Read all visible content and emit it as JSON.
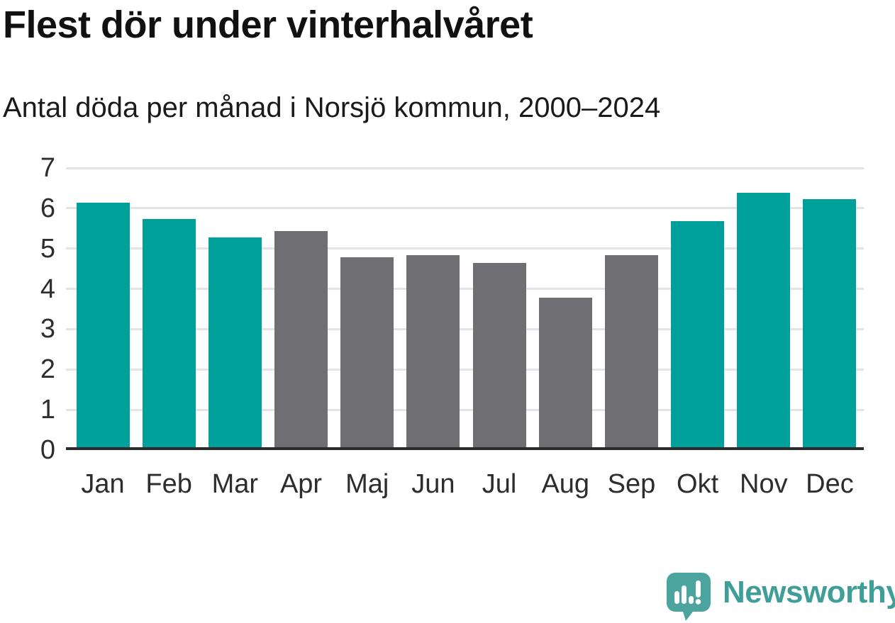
{
  "page": {
    "title": "Flest dör under vinterhalvåret",
    "subtitle": "Antal döda per månad i Norsjö kommun, 2000–2024"
  },
  "chart_data": {
    "type": "bar",
    "title": "Flest dör under vinterhalvåret",
    "subtitle": "Antal döda per månad i Norsjö kommun, 2000–2024",
    "categories": [
      "Jan",
      "Feb",
      "Mar",
      "Apr",
      "Maj",
      "Jun",
      "Jul",
      "Aug",
      "Sep",
      "Okt",
      "Nov",
      "Dec"
    ],
    "values": [
      6.1,
      5.7,
      5.25,
      5.4,
      4.75,
      4.8,
      4.6,
      3.75,
      4.8,
      5.65,
      6.35,
      6.2
    ],
    "highlighted": [
      true,
      true,
      true,
      false,
      false,
      false,
      false,
      false,
      false,
      true,
      true,
      true
    ],
    "highlight_meaning": "winter half-year months shown in teal, summer months in gray",
    "xlabel": "",
    "ylabel": "",
    "ylim": [
      0,
      7
    ],
    "yticks": [
      0,
      1,
      2,
      3,
      4,
      5,
      6,
      7
    ],
    "grid": "horizontal",
    "legend": "none"
  },
  "colors": {
    "bar_winter": "#00a09a",
    "bar_summer": "#6f6e73",
    "axis_text": "#2d2d2d",
    "gridline": "#e4e4e4",
    "axis_line": "#2b2b2b",
    "logo_icon": "#4ba49e",
    "logo_text": "#3f9e98"
  },
  "footer": {
    "brand": "Newsworthy",
    "logo_icon_name": "newsworthy-speech-bubble-barchart-icon"
  }
}
